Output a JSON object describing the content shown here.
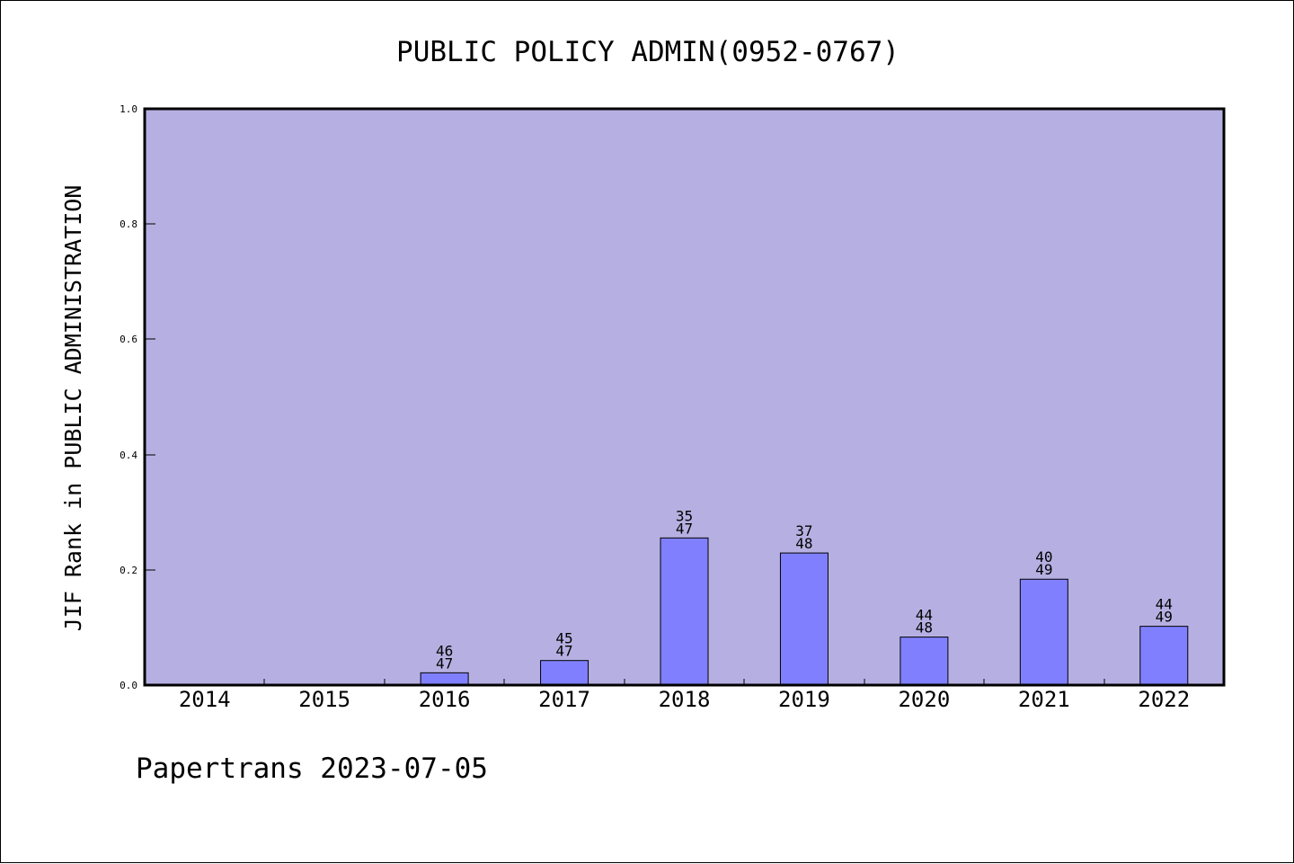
{
  "chart_data": {
    "type": "bar",
    "title": "PUBLIC POLICY ADMIN(0952-0767)",
    "xlabel": "",
    "ylabel": "JIF Rank in PUBLIC ADMINISTRATION",
    "ylim": [
      0,
      1.0
    ],
    "yticks": [
      "0.0",
      "0.2",
      "0.4",
      "0.6",
      "0.8",
      "1.0"
    ],
    "categories": [
      "2014",
      "2015",
      "2016",
      "2017",
      "2018",
      "2019",
      "2020",
      "2021",
      "2022"
    ],
    "values": [
      null,
      null,
      0.0213,
      0.0426,
      0.2553,
      0.2292,
      0.0833,
      0.1837,
      0.102
    ],
    "rank": [
      null,
      null,
      "46",
      "45",
      "35",
      "37",
      "44",
      "40",
      "44"
    ],
    "total": [
      null,
      null,
      "47",
      "47",
      "47",
      "48",
      "48",
      "49",
      "49"
    ],
    "grid": false,
    "legend": "none",
    "colors": {
      "plot_background": "#b6b0e2",
      "bar_fill": "#8080ff",
      "axis": "#000000"
    }
  },
  "footer": {
    "watermark": "Papertrans 2023-07-05"
  }
}
